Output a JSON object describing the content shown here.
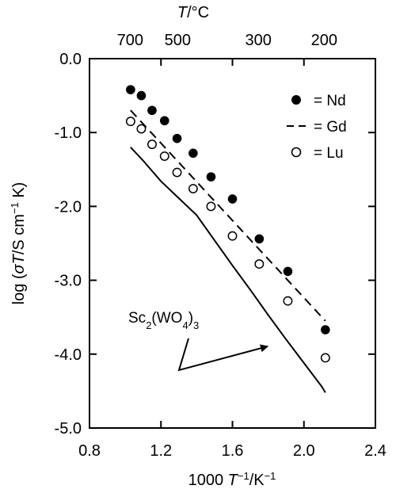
{
  "chart_data": {
    "type": "scatter",
    "xlabel": {
      "pre": "1000 ",
      "var": "T",
      "sup": "−1",
      "post": "/K",
      "sup2": "−1"
    },
    "ylabel": {
      "pre": "log (",
      "sigma": "σ",
      "var": "T",
      "post": "/S cm",
      "sup": "−1",
      "post2": " K)"
    },
    "top_axis_label": {
      "var": "T",
      "unit": "/°C"
    },
    "xlim": [
      0.8,
      2.4
    ],
    "ylim": [
      -5.0,
      0.0
    ],
    "x_ticks": [
      {
        "v": 0.8,
        "label": "0.8"
      },
      {
        "v": 1.2,
        "label": "1.2"
      },
      {
        "v": 1.6,
        "label": "1.6"
      },
      {
        "v": 2.0,
        "label": "2.0"
      },
      {
        "v": 2.4,
        "label": "2.4"
      }
    ],
    "y_ticks": [
      {
        "v": 0.0,
        "label": "0.0"
      },
      {
        "v": -1.0,
        "label": "-1.0"
      },
      {
        "v": -2.0,
        "label": "-2.0"
      },
      {
        "v": -3.0,
        "label": "-3.0"
      },
      {
        "v": -4.0,
        "label": "-4.0"
      },
      {
        "v": -5.0,
        "label": "-5.0"
      }
    ],
    "top_ticks": [
      {
        "label": "700",
        "celsius": 700
      },
      {
        "label": "500",
        "celsius": 500
      },
      {
        "label": "300",
        "celsius": 300
      },
      {
        "label": "200",
        "celsius": 200
      }
    ],
    "grid": false,
    "legend_position": "top-right",
    "series": [
      {
        "name": "= Nd",
        "marker": "filled-circle",
        "x": [
          1.03,
          1.09,
          1.15,
          1.22,
          1.29,
          1.38,
          1.48,
          1.6,
          1.75,
          1.91,
          2.12
        ],
        "y": [
          -0.42,
          -0.5,
          -0.7,
          -0.84,
          -1.08,
          -1.28,
          -1.6,
          -1.9,
          -2.44,
          -2.88,
          -3.67
        ]
      },
      {
        "name": "= Gd",
        "marker": "dashed-line",
        "x": [
          1.03,
          2.12
        ],
        "y": [
          -0.7,
          -3.55
        ]
      },
      {
        "name": "= Lu",
        "marker": "open-circle",
        "x": [
          1.03,
          1.09,
          1.15,
          1.22,
          1.29,
          1.38,
          1.48,
          1.6,
          1.75,
          1.91,
          2.12
        ],
        "y": [
          -0.85,
          -0.95,
          -1.16,
          -1.32,
          -1.54,
          -1.76,
          -2.0,
          -2.4,
          -2.78,
          -3.28,
          -4.05
        ]
      },
      {
        "name": "",
        "marker": "solid-line",
        "x": [
          1.03,
          1.1,
          1.2,
          1.3,
          1.4,
          1.5,
          1.6,
          1.7,
          1.8,
          1.9,
          2.0,
          2.1,
          2.12
        ],
        "y": [
          -1.2,
          -1.38,
          -1.66,
          -1.89,
          -2.12,
          -2.46,
          -2.8,
          -3.13,
          -3.47,
          -3.8,
          -4.12,
          -4.44,
          -4.52
        ]
      }
    ],
    "annotation": {
      "pre": "Sc",
      "sub1": "2",
      "mid": "(WO",
      "sub2": "4",
      "post": ")",
      "sub3": "3"
    }
  }
}
